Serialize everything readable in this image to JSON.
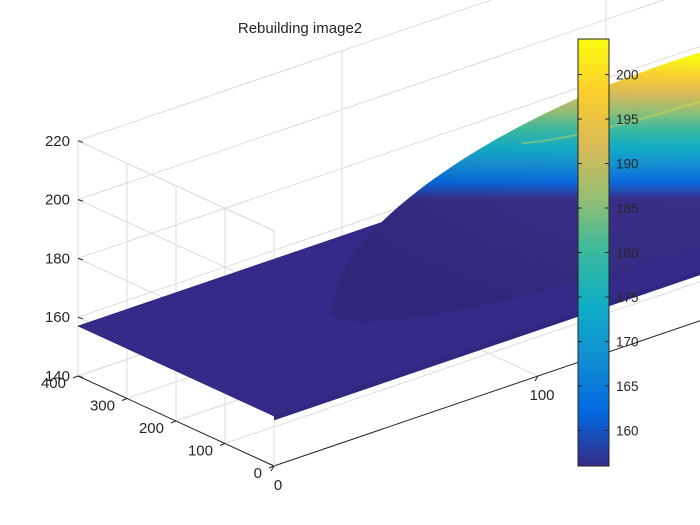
{
  "chart_data": {
    "type": "surface",
    "title": "Rebuilding image2",
    "xlabel": "",
    "ylabel": "",
    "zlabel": "",
    "xlim": [
      0,
      400
    ],
    "ylim": [
      0,
      400
    ],
    "zlim": [
      140,
      220
    ],
    "x_ticks": [
      "0",
      "100",
      "200",
      "300",
      "400"
    ],
    "y_ticks": [
      "0",
      "100",
      "200",
      "300",
      "400"
    ],
    "z_ticks": [
      "140",
      "160",
      "180",
      "200",
      "220"
    ],
    "grid": true,
    "colormap": "parula",
    "colorbar": {
      "range": [
        156,
        204
      ],
      "ticks": [
        "160",
        "165",
        "170",
        "175",
        "180",
        "185",
        "190",
        "195",
        "200"
      ],
      "tick_values": [
        160,
        165,
        170,
        175,
        180,
        185,
        190,
        195,
        200
      ],
      "colors": [
        "#352a87",
        "#0268e1",
        "#108ed2",
        "#0fadc6",
        "#38b99e",
        "#92bf73",
        "#d9ba56",
        "#fcce2e",
        "#f9fb0e"
      ]
    },
    "surface": {
      "base_level": 157,
      "dome_peak": 202,
      "dome_center_x": 195,
      "dome_center_y": 195,
      "dome_radius": 135
    }
  }
}
